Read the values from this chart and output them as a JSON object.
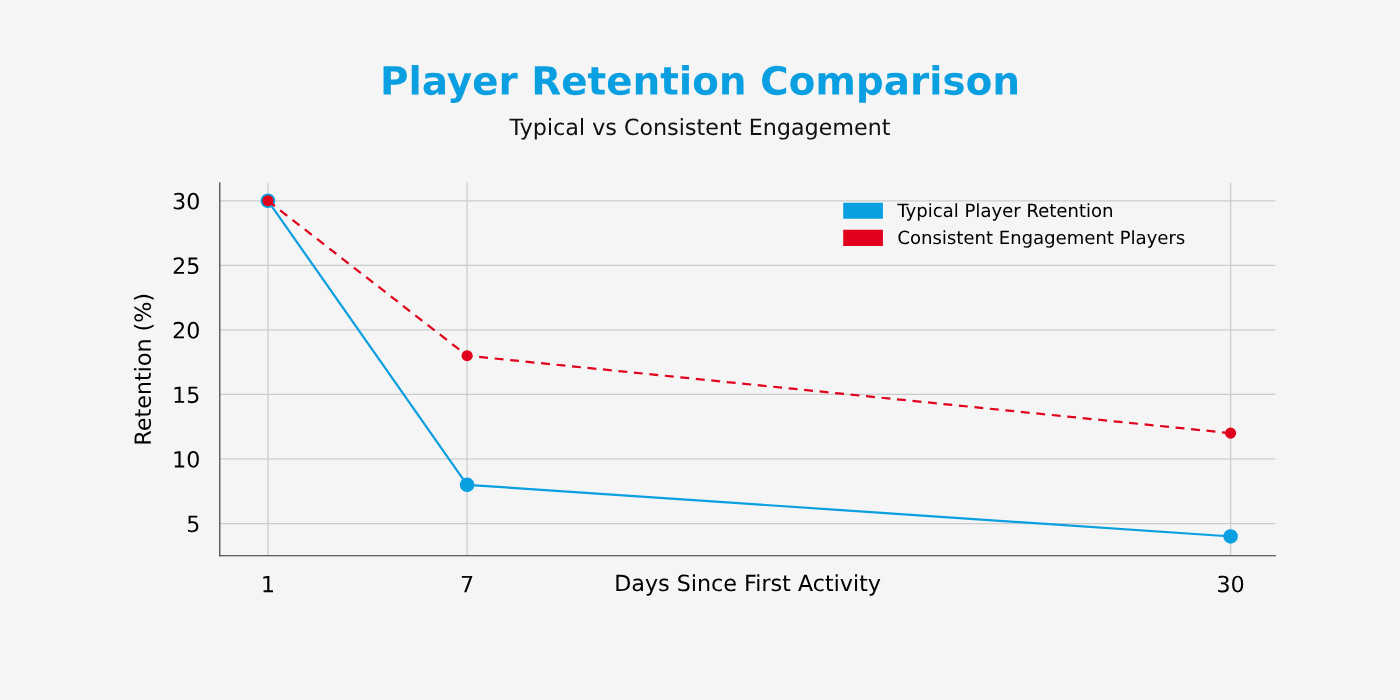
{
  "chart_data": {
    "type": "line",
    "title": "Player Retention Comparison",
    "subtitle": "Typical vs Consistent Engagement",
    "xlabel": "Days Since First Activity",
    "ylabel": "Retention (%)",
    "x": [
      1,
      7,
      30
    ],
    "series": [
      {
        "name": "Typical Player Retention",
        "color": "#0a9fe0",
        "values": [
          30,
          8,
          4
        ],
        "line_style": "solid"
      },
      {
        "name": "Consistent Engagement Players",
        "color": "#e0001b",
        "values": [
          30,
          18,
          12
        ],
        "line_style": "dashed"
      }
    ],
    "xlim": [
      -0.45,
      31.35
    ],
    "xticks": [
      1,
      7,
      30
    ],
    "ylim": [
      2.5,
      31.4
    ],
    "yticks": [
      5,
      10,
      15,
      20,
      25,
      30
    ],
    "grid": true,
    "legend": "top right",
    "marker": "circle"
  }
}
